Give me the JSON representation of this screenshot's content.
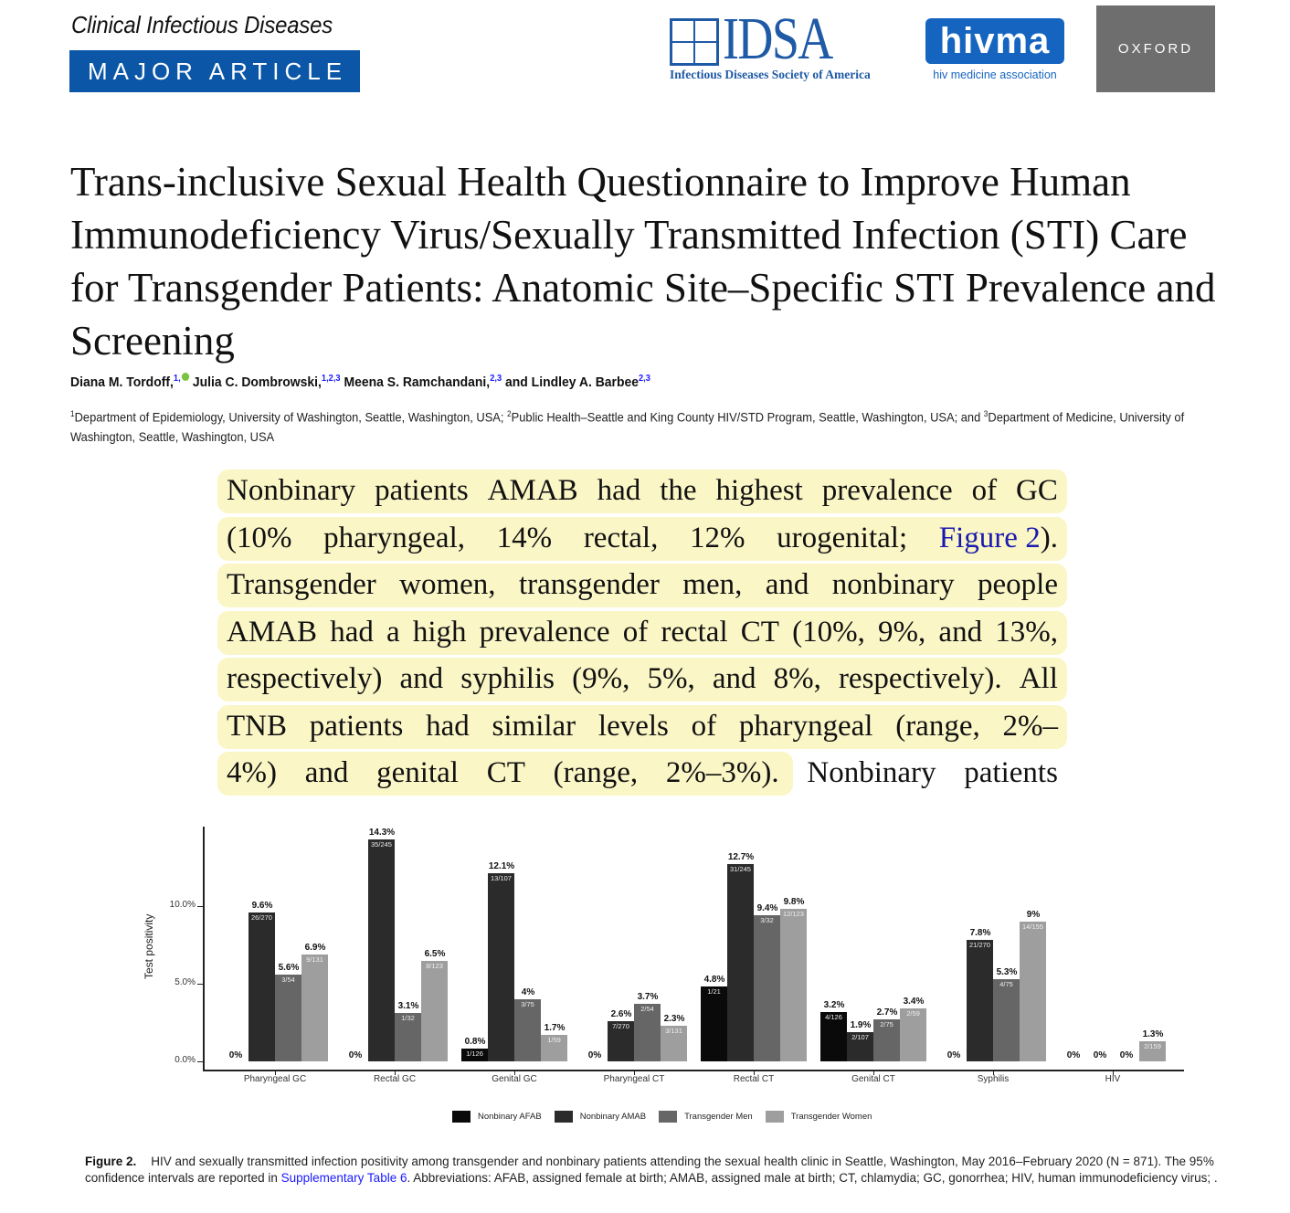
{
  "header": {
    "journal_name": "Clinical Infectious Diseases",
    "article_type": "MAJOR ARTICLE",
    "logos": {
      "idsa": {
        "wordmark": "IDSA",
        "subtitle": "Infectious Diseases Society of America",
        "color": "#1f5aa6"
      },
      "hivma": {
        "wordmark": "hivma",
        "subtitle": "hiv medicine association",
        "color": "#1565c0"
      },
      "oxford": {
        "wordmark": "OXFORD",
        "color": "#6e6e6e"
      }
    },
    "badge_color": "#0b56a6"
  },
  "article": {
    "title": "Trans-inclusive Sexual Health Questionnaire to Improve Human Immunodeficiency Virus/Sexually Transmitted Infection (STI) Care for Transgender Patients: Anatomic Site–Specific STI Prevalence and Screening",
    "authors": [
      {
        "name": "Diana M. Tordoff,",
        "sup": "1,",
        "orcid": true
      },
      {
        "name": "Julia C. Dombrowski,",
        "sup": "1,2,3"
      },
      {
        "name": "Meena S. Ramchandani,",
        "sup": "2,3"
      },
      {
        "name": "and Lindley A. Barbee",
        "sup": "2,3"
      }
    ],
    "affiliations": {
      "a1_sup": "1",
      "a1": "Department of Epidemiology, University of Washington, Seattle, Washington, USA; ",
      "a2_sup": "2",
      "a2": "Public Health–Seattle and King County HIV/STD Program, Seattle, Washington, USA; and ",
      "a3_sup": "3",
      "a3": "Department of Medicine, University of Washington, Seattle, Washington, USA"
    }
  },
  "excerpt": {
    "highlight_color": "#fbf6c6",
    "lines": [
      [
        "Nonbinary",
        "patients",
        "AMAB",
        "had",
        "the",
        "highest",
        "prevalence",
        "of",
        "GC"
      ],
      [
        "(10%",
        "pharyngeal,",
        "14%",
        "rectal,",
        "12%",
        "urogenital;"
      ],
      [
        "Transgender",
        "women,",
        "transgender",
        "men,",
        "and",
        "nonbinary",
        "people"
      ],
      [
        "AMAB",
        "had",
        "a",
        "high",
        "prevalence",
        "of",
        "rectal",
        "CT",
        "(10%,",
        "9%,",
        "and",
        "13%,"
      ],
      [
        "respectively)",
        "and",
        "syphilis",
        "(9%,",
        "5%,",
        "and",
        "8%,",
        "respectively).",
        "All"
      ],
      [
        "TNB",
        "patients",
        "had",
        "similar",
        "levels",
        "of",
        "pharyngeal",
        "(range,",
        "2%–"
      ],
      [
        "4%)",
        "and",
        "genital",
        "CT",
        "(range,",
        "2%–3%).",
        "Nonbinary",
        "patients"
      ]
    ],
    "figure_link": "Figure 2",
    "figure_link_suffix": ")."
  },
  "chart_data": {
    "type": "bar",
    "title": "",
    "xlabel": "",
    "ylabel": "Test positivity",
    "ylim": [
      0,
      15
    ],
    "yticks": [
      "0.0%",
      "5.0%",
      "10.0%"
    ],
    "grid": false,
    "legend_position": "bottom",
    "categories": [
      "Pharyngeal GC",
      "Rectal GC",
      "Genital GC",
      "Pharyngeal CT",
      "Rectal CT",
      "Genital CT",
      "Syphilis",
      "HIV"
    ],
    "series": [
      {
        "name": "Nonbinary AFAB",
        "color": "#0a0a0a",
        "values": [
          0,
          0,
          0.8,
          0,
          4.8,
          3.2,
          0,
          0
        ],
        "labels": [
          "0%",
          "0%",
          "0.8%",
          "0%",
          "4.8%",
          "3.2%",
          "0%",
          "0%"
        ],
        "fractions": [
          "",
          "",
          "1/126",
          "",
          "1/21",
          "4/126",
          "",
          ""
        ]
      },
      {
        "name": "Nonbinary AMAB",
        "color": "#2b2b2b",
        "values": [
          9.6,
          14.3,
          12.1,
          2.6,
          12.7,
          1.9,
          7.8,
          0
        ],
        "labels": [
          "9.6%",
          "14.3%",
          "12.1%",
          "2.6%",
          "12.7%",
          "1.9%",
          "7.8%",
          "0%"
        ],
        "fractions": [
          "26/270",
          "35/245",
          "13/107",
          "7/270",
          "31/245",
          "2/107",
          "21/270",
          ""
        ]
      },
      {
        "name": "Transgender Men",
        "color": "#666666",
        "values": [
          5.6,
          3.1,
          4,
          3.7,
          9.4,
          2.7,
          5.3,
          0
        ],
        "labels": [
          "5.6%",
          "3.1%",
          "4%",
          "3.7%",
          "9.4%",
          "2.7%",
          "5.3%",
          "0%"
        ],
        "fractions": [
          "3/54",
          "1/32",
          "3/75",
          "2/54",
          "3/32",
          "2/75",
          "4/75",
          ""
        ]
      },
      {
        "name": "Transgender Women",
        "color": "#9e9e9e",
        "values": [
          6.9,
          6.5,
          1.7,
          2.3,
          9.8,
          3.4,
          9,
          1.3
        ],
        "labels": [
          "6.9%",
          "6.5%",
          "1.7%",
          "2.3%",
          "9.8%",
          "3.4%",
          "9%",
          "1.3%"
        ],
        "fractions": [
          "9/131",
          "8/123",
          "1/59",
          "3/131",
          "12/123",
          "2/59",
          "14/155",
          "2/159"
        ]
      }
    ]
  },
  "caption": {
    "label": "Figure 2.",
    "text_part1": "HIV and sexually transmitted infection positivity among transgender and nonbinary patients attending the sexual health clinic in Seattle, Washington, May 2016–February 2020 (N = 871). The 95% confidence intervals are reported in ",
    "link": "Supplementary Table 6",
    "text_part2": ". Abbreviations: AFAB, assigned female at birth; AMAB, assigned male at birth; CT, chlamydia; GC, gonorrhea; HIV, human immunodeficiency virus; ."
  }
}
